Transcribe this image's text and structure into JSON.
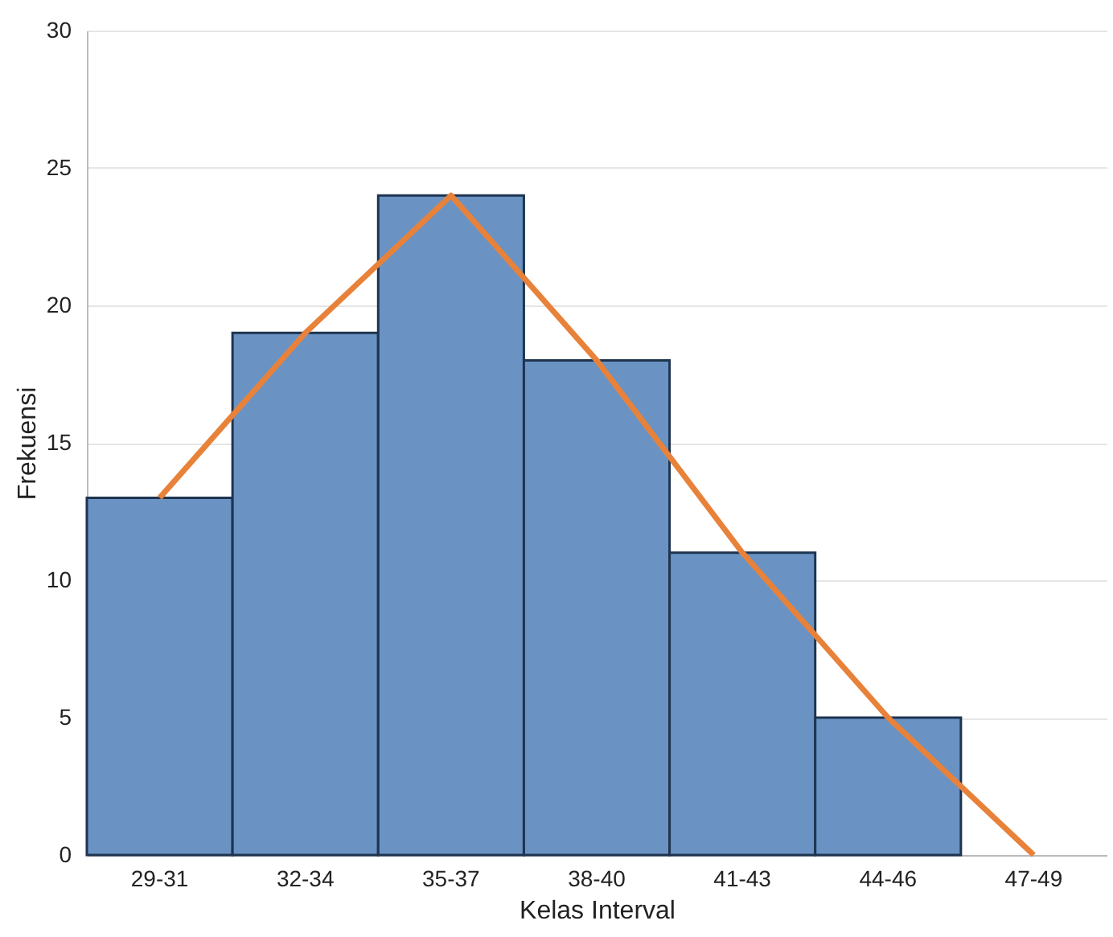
{
  "chart_data": {
    "type": "bar",
    "xlabel": "Kelas Interval",
    "ylabel": "Frekuensi",
    "categories": [
      "29-31",
      "32-34",
      "35-37",
      "38-40",
      "41-43",
      "44-46",
      "47-49"
    ],
    "series": [
      {
        "color": "#6a93c4",
        "values": [
          13,
          19,
          24,
          18,
          11,
          5,
          0
        ]
      },
      {
        "type": "line",
        "color": "#e8823a",
        "values": [
          13,
          19,
          24,
          18,
          11,
          5,
          0
        ]
      }
    ],
    "ylim": [
      0,
      30
    ],
    "yticks": [
      0,
      5,
      10,
      15,
      20,
      25,
      30
    ],
    "grid": "y",
    "marker": "none"
  }
}
